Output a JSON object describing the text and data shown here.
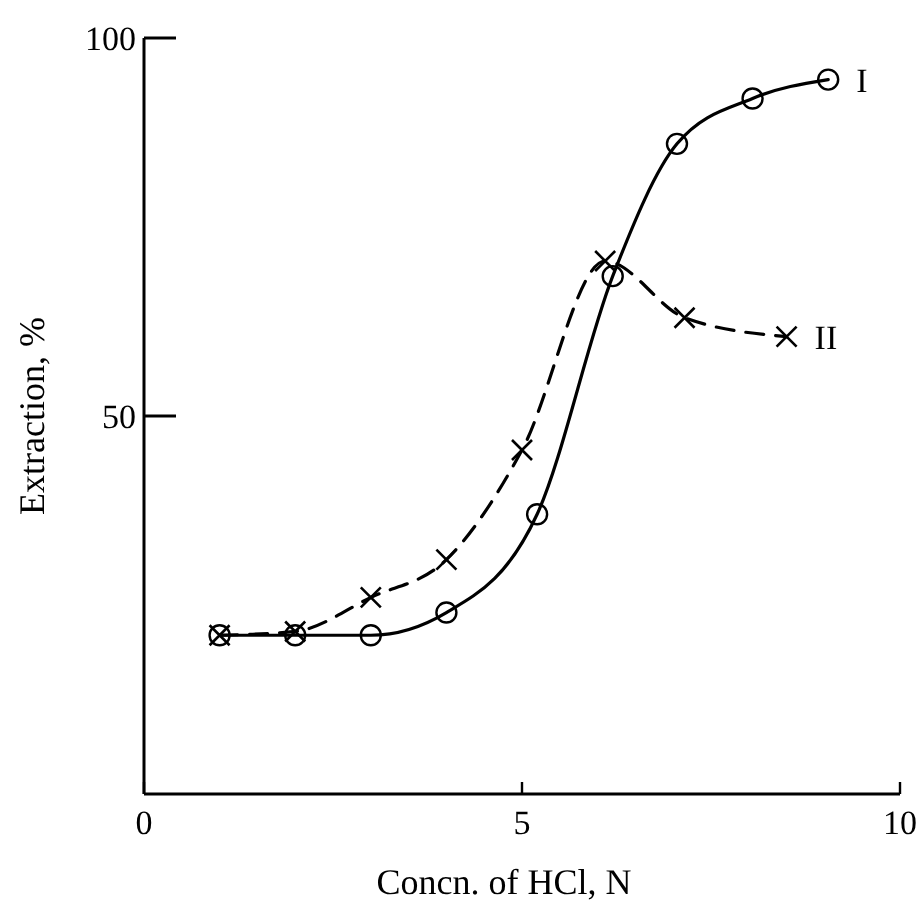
{
  "chart_data": {
    "type": "line",
    "xlabel": "Concn. of HCl, N",
    "ylabel": "Extraction, %",
    "xlim": [
      0,
      10
    ],
    "ylim": [
      0,
      100
    ],
    "xticks": [
      0,
      5,
      10
    ],
    "yticks": [
      50,
      100
    ],
    "grid": false,
    "series": [
      {
        "name": "I",
        "color": "#000000",
        "marker": "circle",
        "line_style": "solid",
        "x": [
          1,
          2,
          3,
          4,
          5.2,
          6.2,
          7.05,
          8.05,
          9.05
        ],
        "values": [
          21,
          21,
          21,
          24,
          37,
          68.5,
          86,
          92,
          94.5
        ]
      },
      {
        "name": "II",
        "color": "#000000",
        "marker": "cross",
        "line_style": "dashed",
        "x": [
          1,
          2,
          3,
          4,
          5,
          6.1,
          7.15,
          8.5
        ],
        "values": [
          21,
          21.5,
          26,
          31,
          45.5,
          70.5,
          63,
          60.5
        ]
      }
    ]
  }
}
